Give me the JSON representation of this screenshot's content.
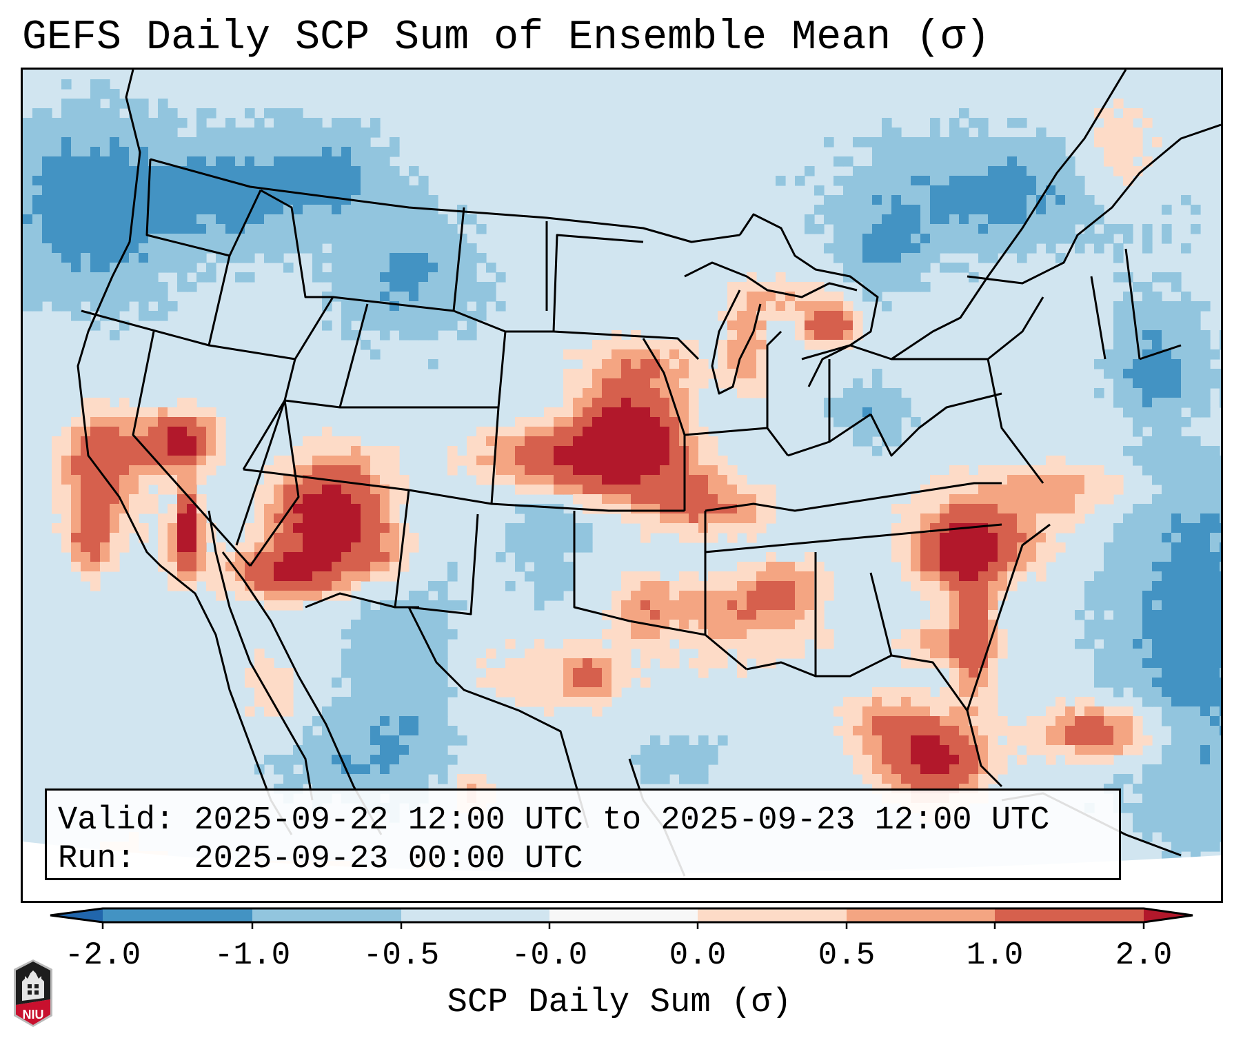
{
  "title": "GEFS Daily SCP Sum of Ensemble Mean (σ)",
  "info_box": {
    "valid_label": "Valid:",
    "valid_value": "2025-09-22 12:00 UTC to 2025-09-23 12:00 UTC",
    "run_label": "Run:",
    "run_value": "2025-09-23 00:00 UTC"
  },
  "colorbar": {
    "label": "SCP Daily Sum (σ)",
    "extend": "both",
    "ticks": [
      "-2.0",
      "-1.0",
      "-0.5",
      "-0.0",
      "0.0",
      "0.5",
      "1.0",
      "2.0"
    ],
    "bins": [
      {
        "range": "< -2.0",
        "color": "#2166ac"
      },
      {
        "range": "-2.0 to -1.0",
        "color": "#4393c3"
      },
      {
        "range": "-1.0 to -0.5",
        "color": "#92c5de"
      },
      {
        "range": "-0.5 to -0.0",
        "color": "#d1e5f0"
      },
      {
        "range": "-0.0 to 0.0",
        "color": "#f7f7f7"
      },
      {
        "range": "0.0 to 0.5",
        "color": "#fddbc7"
      },
      {
        "range": "0.5 to 1.0",
        "color": "#f4a582"
      },
      {
        "range": "1.0 to 2.0",
        "color": "#d6604d"
      },
      {
        "range": "> 2.0",
        "color": "#b2182b"
      }
    ]
  },
  "map": {
    "region": "Continental United States",
    "field": "SCP daily sum standardized anomaly",
    "highlights": [
      "Strong positive anomalies over Kansas, Missouri and Iowa",
      "Strong positive anomalies over Arizona and New Mexico",
      "Positive anomalies over Michigan",
      "Positive anomalies along Gulf Coast, Georgia and Florida",
      "Positive anomalies off the Southern California coast and Baja",
      "Negative anomalies over the Pacific Northwest and western Atlantic"
    ]
  },
  "logo": {
    "text": "NIU",
    "red": "#c8102e",
    "black": "#1d1d1d"
  }
}
